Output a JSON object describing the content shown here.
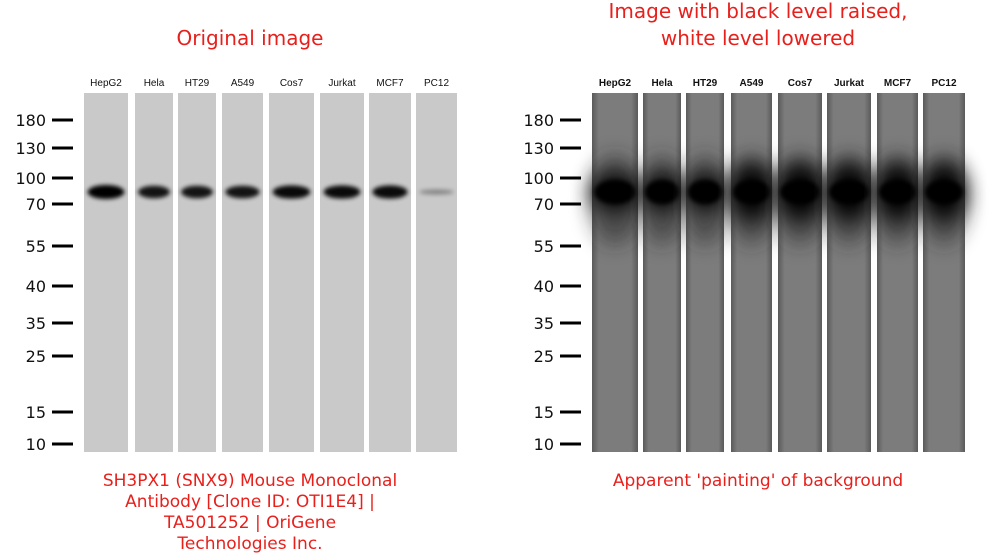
{
  "panels": [
    {
      "title_lines": [
        "Original image"
      ],
      "lanes": [
        "HepG2",
        "Hela",
        "HT29",
        "A549",
        "Cos7",
        "Jurkat",
        "MCF7",
        "PC12"
      ],
      "markers": [
        "180",
        "130",
        "100",
        "70",
        "55",
        "40",
        "35",
        "25",
        "15",
        "10"
      ],
      "caption_lines": [
        "SH3PX1 (SNX9) Mouse Monoclonal",
        "Antibody [Clone ID: OTI1E4] |",
        "TA501252 | OriGene",
        "Technologies Inc."
      ]
    },
    {
      "title_lines": [
        "Image with black level raised,",
        "white level lowered"
      ],
      "lanes": [
        "HepG2",
        "Hela",
        "HT29",
        "A549",
        "Cos7",
        "Jurkat",
        "MCF7",
        "PC12"
      ],
      "markers": [
        "180",
        "130",
        "100",
        "70",
        "55",
        "40",
        "35",
        "25",
        "15",
        "10"
      ],
      "caption_lines": [
        "Apparent 'painting' of background"
      ]
    }
  ]
}
